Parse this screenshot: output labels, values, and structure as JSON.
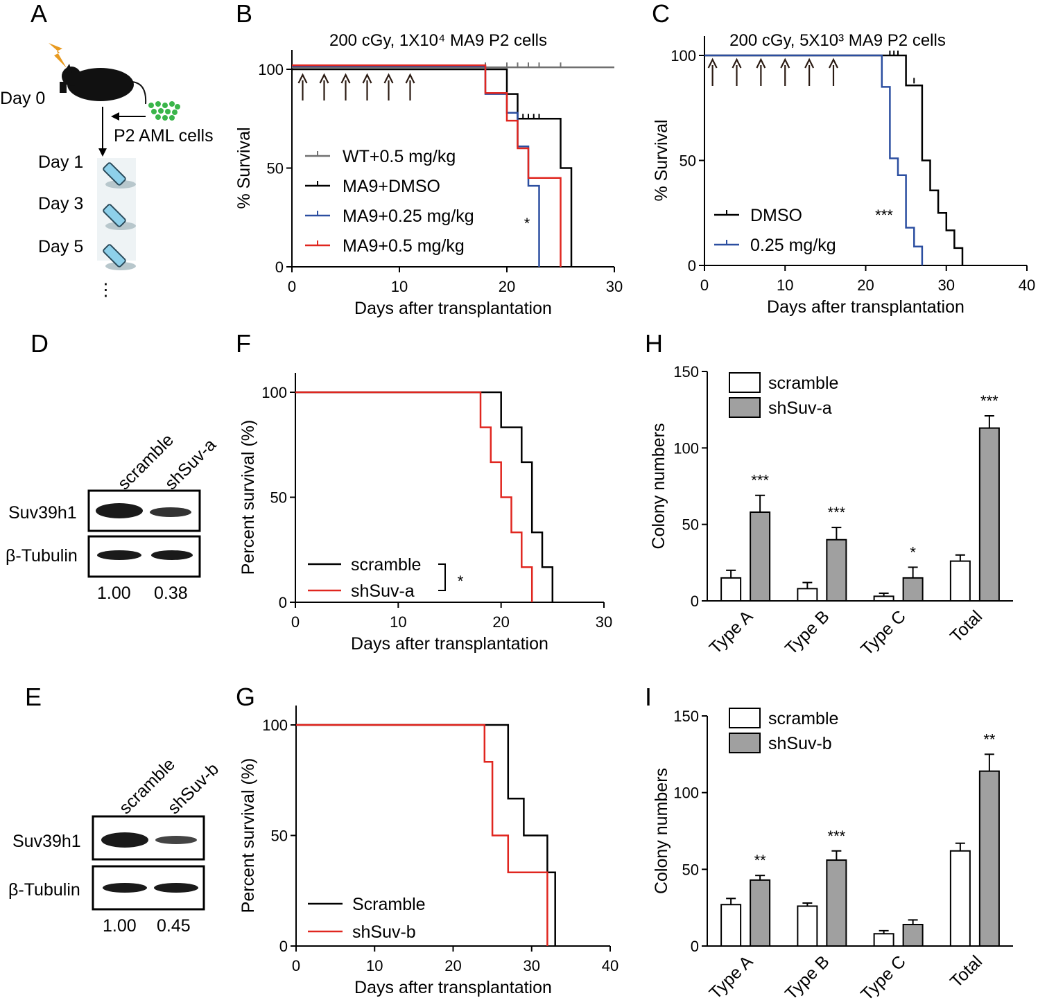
{
  "panel_labels": {
    "A": "A",
    "B": "B",
    "C": "C",
    "D": "D",
    "E": "E",
    "F": "F",
    "G": "G",
    "H": "H",
    "I": "I"
  },
  "panelA": {
    "day0": "Day 0",
    "cells": "P2 AML cells",
    "days": [
      "Day 1",
      "Day 3",
      "Day 5"
    ],
    "ellipsis": "⋮"
  },
  "westernD": {
    "lanes": [
      "scramble",
      "shSuv-a"
    ],
    "rows": [
      "Suv39h1",
      "β-Tubulin"
    ],
    "quant": [
      "1.00",
      "0.38"
    ]
  },
  "westernE": {
    "lanes": [
      "scramble",
      "shSuv-b"
    ],
    "rows": [
      "Suv39h1",
      "β-Tubulin"
    ],
    "quant": [
      "1.00",
      "0.45"
    ]
  },
  "colors": {
    "black": "#000000",
    "gray": "#707070",
    "blue": "#2b4ea0",
    "red": "#e0261f",
    "barfill": "#a0a0a0"
  },
  "chart_data": [
    {
      "id": "B",
      "type": "line",
      "title": "200 cGy, 1X10⁴ MA9 P2 cells",
      "xlabel": "Days after transplantation",
      "ylabel": "% Survival",
      "xlim": [
        0,
        30
      ],
      "ylim": [
        0,
        100
      ],
      "xticks": [
        0,
        10,
        20,
        30
      ],
      "yticks": [
        0,
        50,
        100
      ],
      "legend_position": "center-left",
      "arrows_days": [
        1,
        3,
        5,
        7,
        9,
        11
      ],
      "significance": "*",
      "significance_at": [
        22.5,
        20
      ],
      "series": [
        {
          "name": "WT+0.5 mg/kg",
          "color": "#707070",
          "points": [
            [
              0,
              101
            ],
            [
              30,
              101
            ]
          ],
          "censors": [
            [
              18,
              101
            ],
            [
              20,
              101
            ],
            [
              21,
              101
            ],
            [
              22,
              101
            ],
            [
              23,
              101
            ],
            [
              25,
              101
            ]
          ]
        },
        {
          "name": "MA9+DMSO",
          "color": "#000000",
          "points": [
            [
              0,
              100
            ],
            [
              20,
              100
            ],
            [
              20,
              87.5
            ],
            [
              21,
              87.5
            ],
            [
              21,
              75
            ],
            [
              25,
              75
            ],
            [
              25,
              50
            ],
            [
              26,
              50
            ],
            [
              26,
              0
            ]
          ],
          "censors": [
            [
              21.5,
              75
            ],
            [
              22,
              75
            ],
            [
              22.5,
              75
            ],
            [
              23,
              75
            ]
          ]
        },
        {
          "name": "MA9+0.25 mg/kg",
          "color": "#2b4ea0",
          "points": [
            [
              0,
              101.5
            ],
            [
              18,
              101.5
            ],
            [
              18,
              87.5
            ],
            [
              20,
              87.5
            ],
            [
              20,
              78
            ],
            [
              21,
              78
            ],
            [
              21,
              61
            ],
            [
              22,
              61
            ],
            [
              22,
              41
            ],
            [
              23,
              41
            ],
            [
              23,
              0
            ]
          ],
          "censors": [
            [
              23,
              5
            ]
          ]
        },
        {
          "name": "MA9+0.5 mg/kg",
          "color": "#e0261f",
          "points": [
            [
              0,
              102
            ],
            [
              18,
              102
            ],
            [
              18,
              88
            ],
            [
              20,
              88
            ],
            [
              20,
              74
            ],
            [
              21,
              74
            ],
            [
              21,
              60
            ],
            [
              22,
              60
            ],
            [
              22,
              45
            ],
            [
              25,
              45
            ],
            [
              25,
              0
            ]
          ],
          "censors": [
            [
              25,
              5
            ]
          ]
        }
      ]
    },
    {
      "id": "C",
      "type": "line",
      "title": "200 cGy, 5X10³ MA9 P2 cells",
      "xlabel": "Days after transplantation",
      "ylabel": "% Survival",
      "xlim": [
        0,
        40
      ],
      "ylim": [
        0,
        100
      ],
      "xticks": [
        0,
        10,
        20,
        30,
        40
      ],
      "yticks": [
        0,
        50,
        100
      ],
      "legend_position": "bottom-left",
      "arrows_days": [
        1,
        4,
        7,
        10,
        13,
        16
      ],
      "significance": "***",
      "significance_at": [
        21,
        22
      ],
      "series": [
        {
          "name": "DMSO",
          "color": "#000000",
          "points": [
            [
              0,
              100
            ],
            [
              25,
              100
            ],
            [
              25,
              85.7
            ],
            [
              27,
              85.7
            ],
            [
              27,
              50
            ],
            [
              28,
              50
            ],
            [
              28,
              35.7
            ],
            [
              29,
              35.7
            ],
            [
              29,
              25
            ],
            [
              30,
              25
            ],
            [
              30,
              16.7
            ],
            [
              31,
              16.7
            ],
            [
              31,
              8.3
            ],
            [
              32,
              8.3
            ],
            [
              32,
              0
            ]
          ],
          "censors": [
            [
              23,
              100
            ],
            [
              23.5,
              100
            ],
            [
              24,
              100
            ],
            [
              26,
              87
            ]
          ]
        },
        {
          "name": "0.25 mg/kg",
          "color": "#2b4ea0",
          "points": [
            [
              0,
              100
            ],
            [
              22,
              100
            ],
            [
              22,
              85
            ],
            [
              23,
              85
            ],
            [
              23,
              51
            ],
            [
              24,
              51
            ],
            [
              24,
              43
            ],
            [
              25,
              43
            ],
            [
              25,
              18
            ],
            [
              26,
              18
            ],
            [
              26,
              9
            ],
            [
              27,
              9
            ],
            [
              27,
              0
            ]
          ],
          "censors": []
        }
      ]
    },
    {
      "id": "F",
      "type": "line",
      "xlabel": "Days after transplantation",
      "ylabel": "Percent survival (%)",
      "xlim": [
        0,
        30
      ],
      "ylim": [
        0,
        100
      ],
      "xticks": [
        0,
        10,
        20,
        30
      ],
      "yticks": [
        0,
        50,
        100
      ],
      "legend_position": "bottom-left",
      "significance": "*",
      "series": [
        {
          "name": "scramble",
          "color": "#000000",
          "points": [
            [
              0,
              100
            ],
            [
              20,
              100
            ],
            [
              20,
              83.3
            ],
            [
              22,
              83.3
            ],
            [
              22,
              66.7
            ],
            [
              23,
              66.7
            ],
            [
              23,
              33.3
            ],
            [
              24,
              33.3
            ],
            [
              24,
              16.7
            ],
            [
              25,
              16.7
            ],
            [
              25,
              0
            ]
          ]
        },
        {
          "name": "shSuv-a",
          "color": "#e0261f",
          "points": [
            [
              0,
              100
            ],
            [
              18,
              100
            ],
            [
              18,
              83.3
            ],
            [
              19,
              83.3
            ],
            [
              19,
              66.7
            ],
            [
              20,
              66.7
            ],
            [
              20,
              50
            ],
            [
              21,
              50
            ],
            [
              21,
              33.3
            ],
            [
              22,
              33.3
            ],
            [
              22,
              16.7
            ],
            [
              23,
              16.7
            ],
            [
              23,
              0
            ]
          ]
        }
      ]
    },
    {
      "id": "G",
      "type": "line",
      "xlabel": "Days after transplantation",
      "ylabel": "Percent survival (%)",
      "xlim": [
        0,
        40
      ],
      "ylim": [
        0,
        100
      ],
      "xticks": [
        0,
        10,
        20,
        30,
        40
      ],
      "yticks": [
        0,
        50,
        100
      ],
      "legend_position": "bottom-left",
      "series": [
        {
          "name": "Scramble",
          "color": "#000000",
          "points": [
            [
              0,
              100
            ],
            [
              27,
              100
            ],
            [
              27,
              66.7
            ],
            [
              29,
              66.7
            ],
            [
              29,
              50
            ],
            [
              32,
              50
            ],
            [
              32,
              33.3
            ],
            [
              33,
              33.3
            ],
            [
              33,
              0
            ]
          ]
        },
        {
          "name": "shSuv-b",
          "color": "#e0261f",
          "points": [
            [
              0,
              100
            ],
            [
              24,
              100
            ],
            [
              24,
              83.3
            ],
            [
              25,
              83.3
            ],
            [
              25,
              50
            ],
            [
              27,
              50
            ],
            [
              27,
              33.3
            ],
            [
              32,
              33.3
            ],
            [
              32,
              0
            ]
          ]
        }
      ]
    },
    {
      "id": "H",
      "type": "bar",
      "ylabel": "Colony numbers",
      "ylim": [
        0,
        150
      ],
      "yticks": [
        0,
        50,
        100,
        150
      ],
      "categories": [
        "Type A",
        "Type B",
        "Type C",
        "Total"
      ],
      "series": [
        {
          "name": "scramble",
          "fill": "#ffffff",
          "values": [
            15,
            8,
            3,
            26
          ],
          "errors": [
            5,
            4,
            2,
            4
          ]
        },
        {
          "name": "shSuv-a",
          "fill": "#a0a0a0",
          "values": [
            58,
            40,
            15,
            113
          ],
          "errors": [
            11,
            8,
            7,
            8
          ]
        }
      ],
      "significance": [
        "***",
        "***",
        "*",
        "***"
      ]
    },
    {
      "id": "I",
      "type": "bar",
      "ylabel": "Colony numbers",
      "ylim": [
        0,
        150
      ],
      "yticks": [
        0,
        50,
        100,
        150
      ],
      "categories": [
        "Type A",
        "Type B",
        "Type C",
        "Total"
      ],
      "series": [
        {
          "name": "scramble",
          "fill": "#ffffff",
          "values": [
            27,
            26,
            8,
            62
          ],
          "errors": [
            4,
            2,
            2,
            5
          ]
        },
        {
          "name": "shSuv-b",
          "fill": "#a0a0a0",
          "values": [
            43,
            56,
            14,
            114
          ],
          "errors": [
            3,
            6,
            3,
            11
          ]
        }
      ],
      "significance": [
        "**",
        "***",
        "",
        "**"
      ]
    }
  ]
}
